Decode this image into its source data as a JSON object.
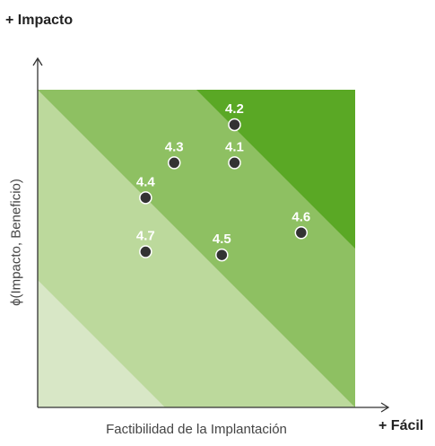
{
  "chart_data": {
    "type": "scatter",
    "title": "",
    "xlabel": "Factibilidad de la Implantación",
    "ylabel": "ϕ(Impacto, Beneficio)",
    "x_end_label": "+ Fácil",
    "y_end_label": "+ Impacto",
    "xlim": [
      0,
      10
    ],
    "ylim": [
      0,
      10
    ],
    "grid": false,
    "zone_colors": [
      "#d8e7c6",
      "#bcd99c",
      "#8ec062",
      "#5aa825"
    ],
    "point_color": "#333333",
    "points": [
      {
        "label": "4.2",
        "x": 6.2,
        "y": 8.9
      },
      {
        "label": "4.3",
        "x": 4.3,
        "y": 7.7
      },
      {
        "label": "4.1",
        "x": 6.2,
        "y": 7.7
      },
      {
        "label": "4.4",
        "x": 3.4,
        "y": 6.6
      },
      {
        "label": "4.6",
        "x": 8.3,
        "y": 5.5
      },
      {
        "label": "4.7",
        "x": 3.4,
        "y": 4.9
      },
      {
        "label": "4.5",
        "x": 5.8,
        "y": 4.8
      }
    ]
  }
}
